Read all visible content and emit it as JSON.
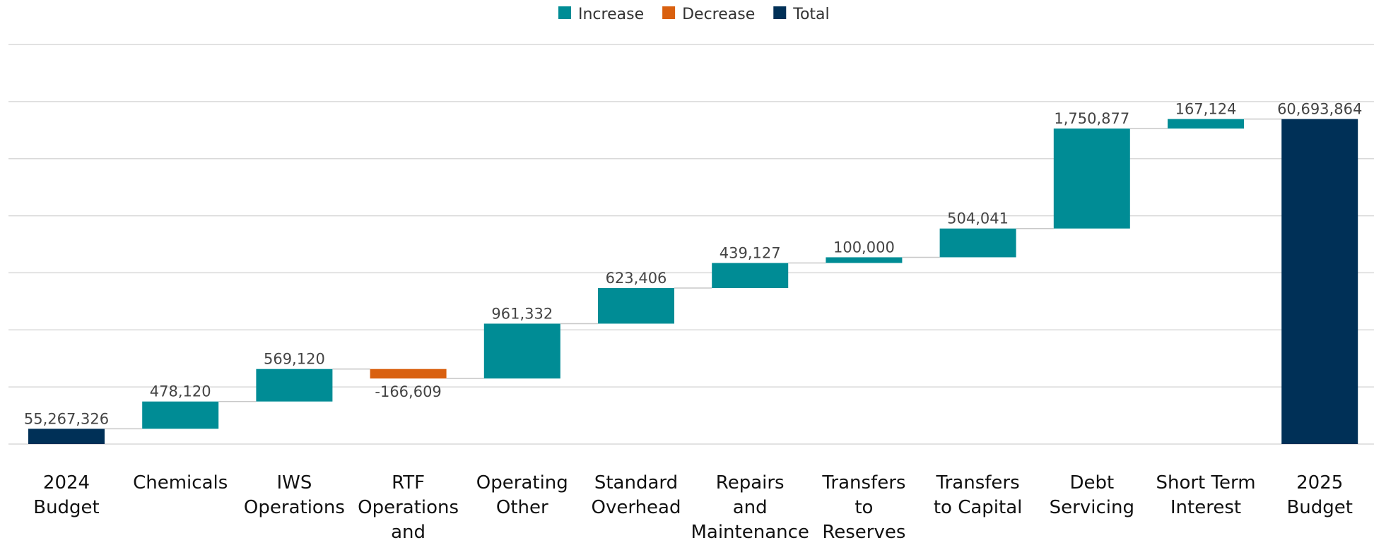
{
  "chart_data": {
    "type": "waterfall",
    "categories": [
      "2024 Budget",
      "Chemicals",
      "IWS Operations",
      "RTF Operations and Biosolids",
      "Operating Other",
      "Standard Overhead",
      "Repairs and Maintenance",
      "Transfers to Reserves",
      "Transfers to Capital",
      "Debt Servicing",
      "Short Term Interest",
      "2025 Budget"
    ],
    "values": [
      55267326,
      478120,
      569120,
      -166609,
      961332,
      623406,
      439127,
      100000,
      504041,
      1750877,
      167124,
      60693864
    ],
    "value_labels": [
      "55,267,326",
      "478,120",
      "569,120",
      "-166,609",
      "961,332",
      "623,406",
      "439,127",
      "100,000",
      "504,041",
      "1,750,877",
      "167,124",
      "60,693,864"
    ],
    "is_total": [
      true,
      false,
      false,
      false,
      false,
      false,
      false,
      false,
      false,
      false,
      false,
      true
    ],
    "legend": [
      {
        "name": "Increase",
        "color": "#008c95"
      },
      {
        "name": "Decrease",
        "color": "#d9600f"
      },
      {
        "name": "Total",
        "color": "#003057"
      }
    ],
    "ylim": [
      55000000,
      62000000
    ],
    "yticks": [
      55000000,
      56000000,
      57000000,
      58000000,
      59000000,
      60000000,
      61000000,
      62000000
    ],
    "grid": true
  }
}
